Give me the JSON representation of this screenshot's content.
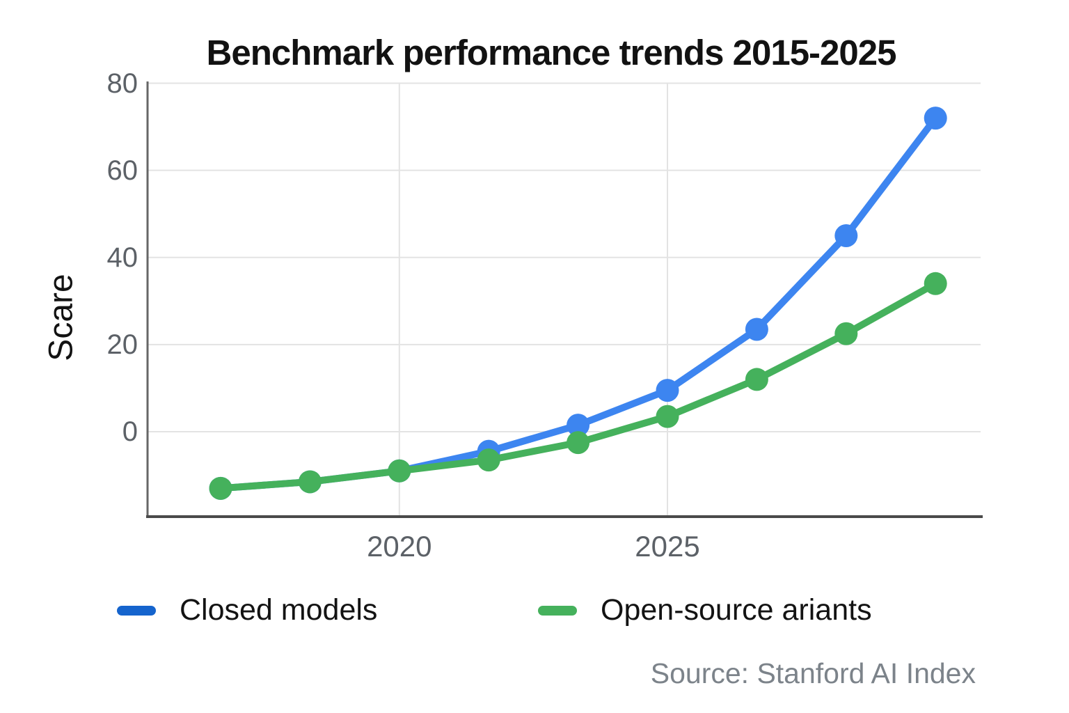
{
  "chart_data": {
    "type": "line",
    "title": "Benchmark performance trends 2015-2025",
    "ylabel": "Scare",
    "source": "Source: Stanford AI Index",
    "grid": true,
    "legend_position": "bottom-left",
    "y_ticks": [
      80,
      60,
      40,
      20,
      0
    ],
    "ylim": [
      -19.5,
      80
    ],
    "num_points": 9,
    "x_ticks": [
      {
        "label": "2020",
        "point_index": 2
      },
      {
        "label": "2025",
        "point_index": 5
      }
    ],
    "series": [
      {
        "name": "Closed models",
        "line_color": "#3d85f0",
        "legend_color": "#1564cd",
        "values": [
          -13,
          -11.5,
          -9,
          -4.5,
          1.5,
          9.5,
          23.5,
          45,
          72
        ],
        "visible_from_point_index": 3
      },
      {
        "name": "Open-source ariants",
        "line_color": "#45b15c",
        "legend_color": "#45b15c",
        "values": [
          -13,
          -11.5,
          -9,
          -6.5,
          -2.5,
          3.5,
          12,
          22.5,
          34
        ],
        "visible_from_point_index": 0
      }
    ],
    "axis_color": "#4a4a4a",
    "gridline_color": "#e3e3e3"
  }
}
